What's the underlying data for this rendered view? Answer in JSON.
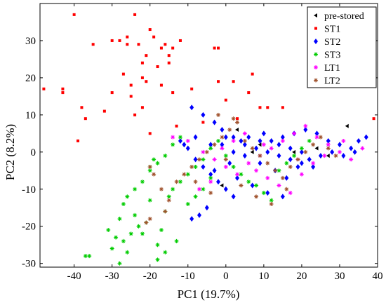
{
  "chart_data": {
    "type": "scatter",
    "xlabel": "PC1 (19.7%)",
    "ylabel": "PC2 (8.2%)",
    "xlim": [
      -49,
      40
    ],
    "ylim": [
      -31,
      40
    ],
    "xticks": [
      -40,
      -30,
      -20,
      -10,
      0,
      10,
      20,
      30,
      40
    ],
    "yticks": [
      -30,
      -20,
      -10,
      0,
      10,
      20,
      30
    ],
    "legend_position": "top-right",
    "series": [
      {
        "name": "pre-stored",
        "marker": "triangle-left",
        "color": "#000000",
        "points": [
          [
            3,
            6
          ],
          [
            9,
            2
          ],
          [
            27,
            -1
          ],
          [
            32,
            7
          ],
          [
            18,
            0
          ],
          [
            24,
            1
          ],
          [
            -1,
            -9
          ],
          [
            7,
            0
          ]
        ]
      },
      {
        "name": "ST1",
        "marker": "square",
        "color": "#ff0000",
        "points": [
          [
            -40,
            37
          ],
          [
            -24,
            37
          ],
          [
            -48,
            17
          ],
          [
            -43,
            17
          ],
          [
            -43,
            16
          ],
          [
            -38,
            12
          ],
          [
            -37,
            9
          ],
          [
            -35,
            29
          ],
          [
            -32,
            11
          ],
          [
            -30,
            30
          ],
          [
            -30,
            16
          ],
          [
            -28,
            30
          ],
          [
            -27,
            21
          ],
          [
            -26,
            31
          ],
          [
            -26,
            29
          ],
          [
            -25,
            18
          ],
          [
            -25,
            15
          ],
          [
            -24,
            10
          ],
          [
            -23,
            29
          ],
          [
            -22,
            24
          ],
          [
            -22,
            20
          ],
          [
            -21,
            26
          ],
          [
            -19,
            31
          ],
          [
            -18,
            23
          ],
          [
            -17,
            28
          ],
          [
            -15,
            26
          ],
          [
            -15,
            24
          ],
          [
            -14,
            28
          ],
          [
            -16,
            29
          ],
          [
            -21,
            19
          ],
          [
            -20,
            33
          ],
          [
            -17,
            18
          ],
          [
            -14,
            16
          ],
          [
            -12,
            30
          ],
          [
            -9,
            17
          ],
          [
            -6,
            8
          ],
          [
            -3,
            28
          ],
          [
            -2,
            28
          ],
          [
            -2,
            19
          ],
          [
            0,
            14
          ],
          [
            2,
            19
          ],
          [
            3,
            9
          ],
          [
            6,
            16
          ],
          [
            7,
            21
          ],
          [
            9,
            12
          ],
          [
            11,
            12
          ],
          [
            15,
            12
          ],
          [
            39,
            9
          ],
          [
            -39,
            3
          ],
          [
            -13,
            7
          ],
          [
            -22,
            12
          ],
          [
            -20,
            5
          ]
        ]
      },
      {
        "name": "ST2",
        "marker": "diamond",
        "color": "#0000ff",
        "points": [
          [
            -9,
            12
          ],
          [
            -6,
            10
          ],
          [
            -3,
            8
          ],
          [
            -1,
            6
          ],
          [
            2,
            4
          ],
          [
            5,
            2
          ],
          [
            8,
            1
          ],
          [
            11,
            0
          ],
          [
            14,
            -1
          ],
          [
            17,
            -2
          ],
          [
            20,
            -3
          ],
          [
            23,
            -4
          ],
          [
            -12,
            3
          ],
          [
            -10,
            1
          ],
          [
            -8,
            -2
          ],
          [
            -6,
            -4
          ],
          [
            -4,
            -6
          ],
          [
            -2,
            -8
          ],
          [
            0,
            -10
          ],
          [
            2,
            -12
          ],
          [
            -5,
            -15
          ],
          [
            -7,
            -17
          ],
          [
            -9,
            -18
          ],
          [
            4,
            3
          ],
          [
            6,
            4
          ],
          [
            9,
            3
          ],
          [
            12,
            3
          ],
          [
            15,
            4
          ],
          [
            18,
            5
          ],
          [
            21,
            6
          ],
          [
            24,
            5
          ],
          [
            27,
            3
          ],
          [
            30,
            2
          ],
          [
            33,
            1
          ],
          [
            35,
            3
          ],
          [
            37,
            4
          ],
          [
            -3,
            -5
          ],
          [
            1,
            -3
          ],
          [
            5,
            -1
          ],
          [
            9,
            -3
          ],
          [
            13,
            -5
          ],
          [
            16,
            -7
          ],
          [
            19,
            -4
          ],
          [
            22,
            -2
          ],
          [
            25,
            -1
          ],
          [
            28,
            0
          ],
          [
            31,
            -1
          ],
          [
            34,
            0
          ],
          [
            3,
            -7
          ],
          [
            7,
            -9
          ],
          [
            11,
            -11
          ],
          [
            15,
            -12
          ],
          [
            -1,
            2
          ],
          [
            2,
            0
          ],
          [
            10,
            5
          ],
          [
            14,
            2
          ],
          [
            17,
            1
          ],
          [
            20,
            0
          ],
          [
            -11,
            2
          ],
          [
            -8,
            4
          ],
          [
            -4,
            2
          ],
          [
            0,
            4
          ]
        ]
      },
      {
        "name": "ST3",
        "marker": "star",
        "color": "#00cc00",
        "points": [
          [
            -37,
            -28
          ],
          [
            -36,
            -28
          ],
          [
            -31,
            -21
          ],
          [
            -30,
            -26
          ],
          [
            -29,
            -23
          ],
          [
            -28,
            -18
          ],
          [
            -27,
            -24
          ],
          [
            -26,
            -27
          ],
          [
            -25,
            -22
          ],
          [
            -24,
            -17
          ],
          [
            -22,
            -22
          ],
          [
            -21,
            -19
          ],
          [
            -20,
            -13
          ],
          [
            -18,
            -25
          ],
          [
            -17,
            -21
          ],
          [
            -16,
            -16
          ],
          [
            -15,
            -12
          ],
          [
            -14,
            -10
          ],
          [
            -12,
            -8
          ],
          [
            -10,
            -6
          ],
          [
            -8,
            -4
          ],
          [
            -6,
            -2
          ],
          [
            -4,
            1
          ],
          [
            -2,
            3
          ],
          [
            0,
            -1
          ],
          [
            2,
            -4
          ],
          [
            4,
            -6
          ],
          [
            6,
            -8
          ],
          [
            8,
            -9
          ],
          [
            10,
            -11
          ],
          [
            12,
            -13
          ],
          [
            -26,
            -12
          ],
          [
            -24,
            -10
          ],
          [
            -22,
            -8
          ],
          [
            -20,
            -5
          ],
          [
            -18,
            -3
          ],
          [
            -16,
            -1
          ],
          [
            -14,
            2
          ],
          [
            -12,
            4
          ],
          [
            -10,
            -14
          ],
          [
            -8,
            -12
          ],
          [
            -6,
            -10
          ],
          [
            -4,
            -7
          ],
          [
            14,
            -5
          ],
          [
            16,
            -3
          ],
          [
            18,
            -1
          ],
          [
            20,
            1
          ],
          [
            22,
            3
          ],
          [
            -20,
            -4
          ],
          [
            -19,
            -2
          ],
          [
            -23,
            -20
          ],
          [
            -28,
            -30
          ],
          [
            -18,
            -29
          ],
          [
            -16,
            -27
          ],
          [
            -27,
            -14
          ],
          [
            -13,
            -24
          ]
        ]
      },
      {
        "name": "LT1",
        "marker": "star",
        "color": "#ff00ff",
        "points": [
          [
            -14,
            4
          ],
          [
            -10,
            3
          ],
          [
            -6,
            0
          ],
          [
            -3,
            -2
          ],
          [
            0,
            -4
          ],
          [
            3,
            -6
          ],
          [
            6,
            -3
          ],
          [
            9,
            -1
          ],
          [
            12,
            1
          ],
          [
            15,
            3
          ],
          [
            18,
            5
          ],
          [
            21,
            7
          ],
          [
            24,
            4
          ],
          [
            27,
            2
          ],
          [
            30,
            0
          ],
          [
            33,
            -2
          ],
          [
            36,
            1
          ],
          [
            -1,
            1
          ],
          [
            2,
            3
          ],
          [
            5,
            5
          ],
          [
            8,
            -5
          ],
          [
            11,
            -7
          ],
          [
            14,
            -9
          ],
          [
            17,
            -11
          ],
          [
            20,
            -6
          ],
          [
            23,
            -3
          ],
          [
            -4,
            -8
          ],
          [
            -7,
            -10
          ],
          [
            10,
            2
          ],
          [
            19,
            -2
          ],
          [
            26,
            -1
          ],
          [
            31,
            3
          ]
        ]
      },
      {
        "name": "LT2",
        "marker": "star",
        "color": "#a0522d",
        "points": [
          [
            -20,
            -4
          ],
          [
            -19,
            -6
          ],
          [
            -17,
            -10
          ],
          [
            -15,
            -13
          ],
          [
            -13,
            -8
          ],
          [
            -11,
            -6
          ],
          [
            -9,
            -4
          ],
          [
            -7,
            -2
          ],
          [
            -5,
            0
          ],
          [
            -3,
            2
          ],
          [
            -1,
            4
          ],
          [
            1,
            6
          ],
          [
            3,
            8
          ],
          [
            5,
            3
          ],
          [
            7,
            1
          ],
          [
            9,
            -1
          ],
          [
            11,
            -3
          ],
          [
            13,
            -5
          ],
          [
            15,
            -7
          ],
          [
            17,
            -4
          ],
          [
            19,
            -2
          ],
          [
            21,
            0
          ],
          [
            23,
            2
          ],
          [
            25,
            4
          ],
          [
            27,
            1
          ],
          [
            29,
            -1
          ],
          [
            -20,
            -18
          ],
          [
            -21,
            -19
          ],
          [
            -16,
            -16
          ],
          [
            -2,
            10
          ],
          [
            2,
            9
          ],
          [
            0,
            -2
          ],
          [
            4,
            -9
          ],
          [
            8,
            -12
          ],
          [
            12,
            -14
          ],
          [
            16,
            -10
          ],
          [
            -8,
            -8
          ],
          [
            -4,
            -11
          ]
        ]
      }
    ]
  }
}
